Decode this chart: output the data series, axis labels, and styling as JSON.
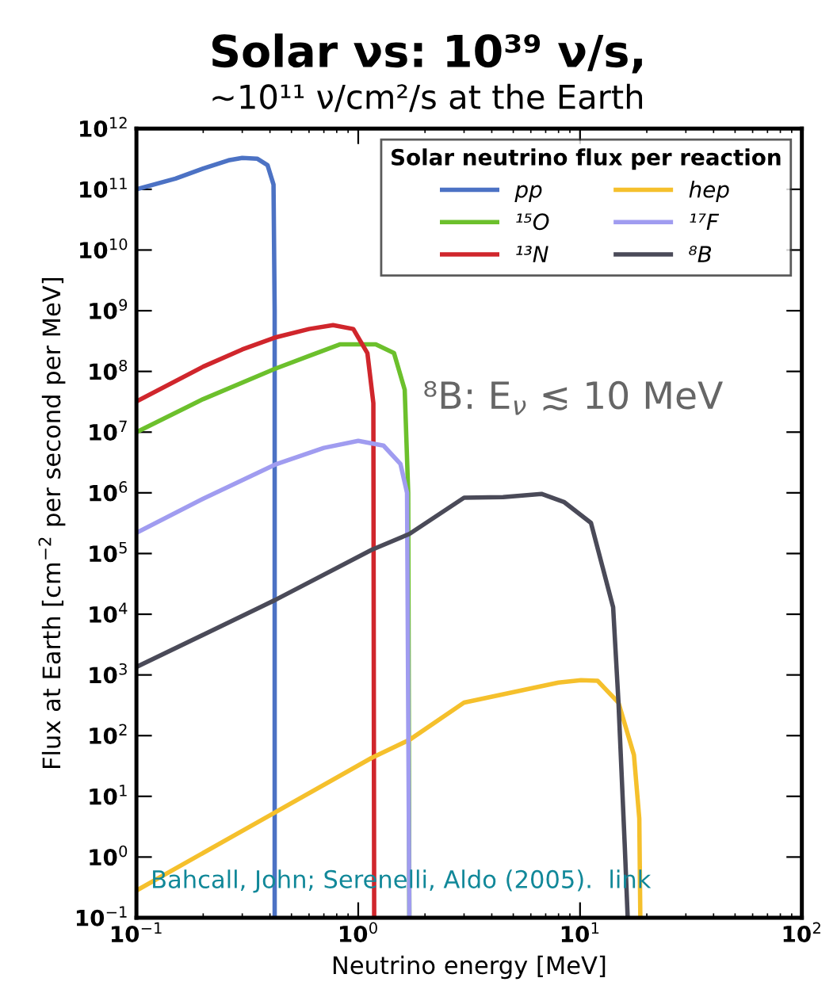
{
  "chart_data": {
    "type": "line",
    "title": "Solar νs: 10³⁹ ν/s,",
    "subtitle": "~10¹¹ ν/cm²/s at the Earth",
    "xlabel": "Neutrino energy [MeV]",
    "ylabel": "Flux at Earth [cm$^{−2}$ per second per MeV]",
    "legend_title": "Solar neutrino flux per reaction",
    "legend": "top right",
    "log": "xy",
    "grid": false,
    "marker": "none",
    "line_style": "solid",
    "xlim": [
      0.1,
      100
    ],
    "ylim": [
      0.1,
      1000000000000.0
    ],
    "xticks": [
      {
        "value": 0.1,
        "label": "10$^{−1}$"
      },
      {
        "value": 1,
        "label": "10$^{0}$"
      },
      {
        "value": 10,
        "label": "10$^{1}$"
      },
      {
        "value": 100,
        "label": "10$^{2}$"
      }
    ],
    "yticks": [
      {
        "value": 0.1,
        "label": "10$^{−1}$"
      },
      {
        "value": 1,
        "label": "10$^{0}$"
      },
      {
        "value": 10,
        "label": "10$^{1}$"
      },
      {
        "value": 100,
        "label": "10$^{2}$"
      },
      {
        "value": 1000,
        "label": "10$^{3}$"
      },
      {
        "value": 10000,
        "label": "10$^{4}$"
      },
      {
        "value": 100000,
        "label": "10$^{5}$"
      },
      {
        "value": 1000000,
        "label": "10$^{6}$"
      },
      {
        "value": 10000000,
        "label": "10$^{7}$"
      },
      {
        "value": 100000000,
        "label": "10$^{8}$"
      },
      {
        "value": 1000000000,
        "label": "10$^{9}$"
      },
      {
        "value": 10000000000,
        "label": "10$^{10}$"
      },
      {
        "value": 100000000000,
        "label": "10$^{11}$"
      },
      {
        "value": 1000000000000,
        "label": "10$^{12}$"
      }
    ],
    "annotations": [
      "⁸B: E$_{ν}$ ≲ 10 MeV",
      "Bahcall, John; Serenelli, Aldo (2005).  link"
    ],
    "series": [
      {
        "name": "pp",
        "color": "#4c72c4",
        "x": [
          0.1,
          0.15,
          0.2,
          0.26,
          0.3,
          0.35,
          0.39,
          0.415,
          0.42,
          0.42
        ],
        "values": [
          100000000000.0,
          150000000000.0,
          220000000000.0,
          300000000000.0,
          330000000000.0,
          320000000000.0,
          250000000000.0,
          120000000000.0,
          1000000000.0,
          0.1
        ]
      },
      {
        "name": "¹⁵O",
        "color": "#6cc02c",
        "x": [
          0.1,
          0.2,
          0.42,
          0.6,
          0.83,
          1.2,
          1.45,
          1.62,
          1.68,
          1.7
        ],
        "values": [
          10000000.0,
          35000000.0,
          110000000.0,
          180000000.0,
          280000000.0,
          280000000.0,
          200000000.0,
          50000000.0,
          1000000.0,
          0.1
        ]
      },
      {
        "name": "¹³N",
        "color": "#d0262c",
        "x": [
          0.1,
          0.2,
          0.3,
          0.42,
          0.6,
          0.77,
          0.95,
          1.1,
          1.17,
          1.18
        ],
        "values": [
          32000000.0,
          120000000.0,
          230000000.0,
          360000000.0,
          500000000.0,
          580000000.0,
          500000000.0,
          200000000.0,
          30000000.0,
          0.1
        ]
      },
      {
        "name": "hep",
        "color": "#f5c02c",
        "x": [
          0.1,
          0.42,
          1.15,
          1.7,
          3.0,
          8.0,
          10.1,
          12.0,
          14.9,
          17.5,
          18.5,
          18.7
        ],
        "values": [
          0.28,
          5.4,
          43,
          85,
          350,
          750,
          820,
          800,
          350,
          48,
          4.3,
          0.1
        ]
      },
      {
        "name": "¹⁷F",
        "color": "#a09cf0",
        "x": [
          0.1,
          0.2,
          0.42,
          0.7,
          1.0,
          1.3,
          1.55,
          1.66,
          1.7
        ],
        "values": [
          220000.0,
          800000.0,
          2900000.0,
          5500000.0,
          7200000.0,
          6000000.0,
          3000000.0,
          1000000.0,
          0.1
        ]
      },
      {
        "name": "⁸B",
        "color": "#4a4a58",
        "x": [
          0.1,
          0.42,
          1.15,
          1.7,
          3.0,
          4.5,
          6.7,
          8.5,
          11.2,
          14.1,
          14.9,
          15.9,
          16.4
        ],
        "values": [
          1350,
          17000,
          115000,
          210000,
          830000,
          850000,
          960000,
          700000,
          320000,
          13000,
          360,
          1.6,
          0.1
        ]
      }
    ]
  }
}
